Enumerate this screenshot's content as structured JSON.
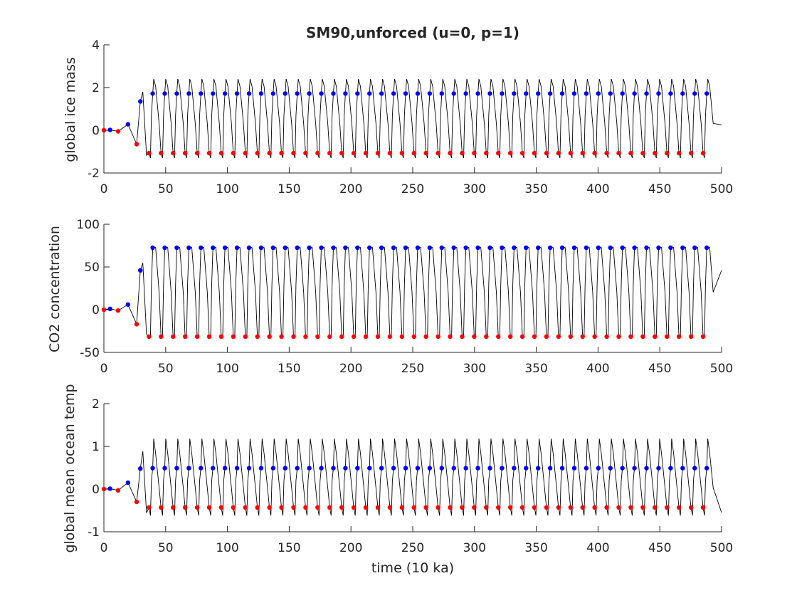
{
  "chart_data": {
    "title": "SM90,unforced (u=0, p=1)",
    "xlabel": "time (10 ka)",
    "grid": false,
    "legend": "none",
    "colors": {
      "line": "#000000",
      "maxima": "#0000ff",
      "minima": "#ff0000",
      "axes": "#262626"
    },
    "panels": [
      {
        "type": "line",
        "ylabel": "global ice mass",
        "xlim": [
          0,
          500
        ],
        "ylim": [
          -2,
          4
        ],
        "xticks": [
          "0",
          "50",
          "100",
          "150",
          "200",
          "250",
          "300",
          "350",
          "400",
          "450",
          "500"
        ],
        "yticks": [
          "-2",
          "0",
          "2",
          "4"
        ],
        "transient": {
          "x": [
            0,
            5,
            11.5,
            19.5,
            26.5,
            29.5
          ],
          "y": [
            0,
            0.02,
            -0.05,
            0.28,
            -0.65,
            1.35
          ]
        },
        "cycle": {
          "first_max_x": 39.5,
          "first_min_x": 36.5,
          "period": 9.75,
          "count": 47,
          "max_y": 1.72,
          "min_y": -1.07,
          "peak": 2.4,
          "trough": -1.3,
          "end_y": 0.25
        }
      },
      {
        "type": "line",
        "ylabel": "CO2 concentration",
        "xlim": [
          0,
          500
        ],
        "ylim": [
          -50,
          100
        ],
        "xticks": [
          "0",
          "50",
          "100",
          "150",
          "200",
          "250",
          "300",
          "350",
          "400",
          "450",
          "500"
        ],
        "yticks": [
          "-50",
          "0",
          "50",
          "100"
        ],
        "transient": {
          "x": [
            0,
            5,
            11.5,
            19.5,
            26.5,
            29.5
          ],
          "y": [
            0,
            1,
            -1,
            6,
            -17,
            46
          ]
        },
        "cycle": {
          "first_max_x": 39.5,
          "first_min_x": 36.5,
          "period": 9.75,
          "count": 47,
          "max_y": 72.5,
          "min_y": -31.5,
          "peak": 73,
          "trough": -32,
          "end_y": 46
        }
      },
      {
        "type": "line",
        "ylabel": "global mean ocean temp",
        "xlim": [
          0,
          500
        ],
        "ylim": [
          -1,
          2
        ],
        "xticks": [
          "0",
          "50",
          "100",
          "150",
          "200",
          "250",
          "300",
          "350",
          "400",
          "450",
          "500"
        ],
        "yticks": [
          "-1",
          "0",
          "1",
          "2"
        ],
        "transient": {
          "x": [
            0,
            5,
            11.5,
            19.5,
            26.5,
            29.5
          ],
          "y": [
            0,
            0.01,
            -0.03,
            0.15,
            -0.3,
            0.48
          ]
        },
        "cycle": {
          "first_max_x": 39.5,
          "first_min_x": 36.5,
          "period": 9.75,
          "count": 47,
          "max_y": 0.49,
          "min_y": -0.43,
          "peak": 1.18,
          "trough": -0.62,
          "end_y": -0.55
        }
      }
    ]
  }
}
